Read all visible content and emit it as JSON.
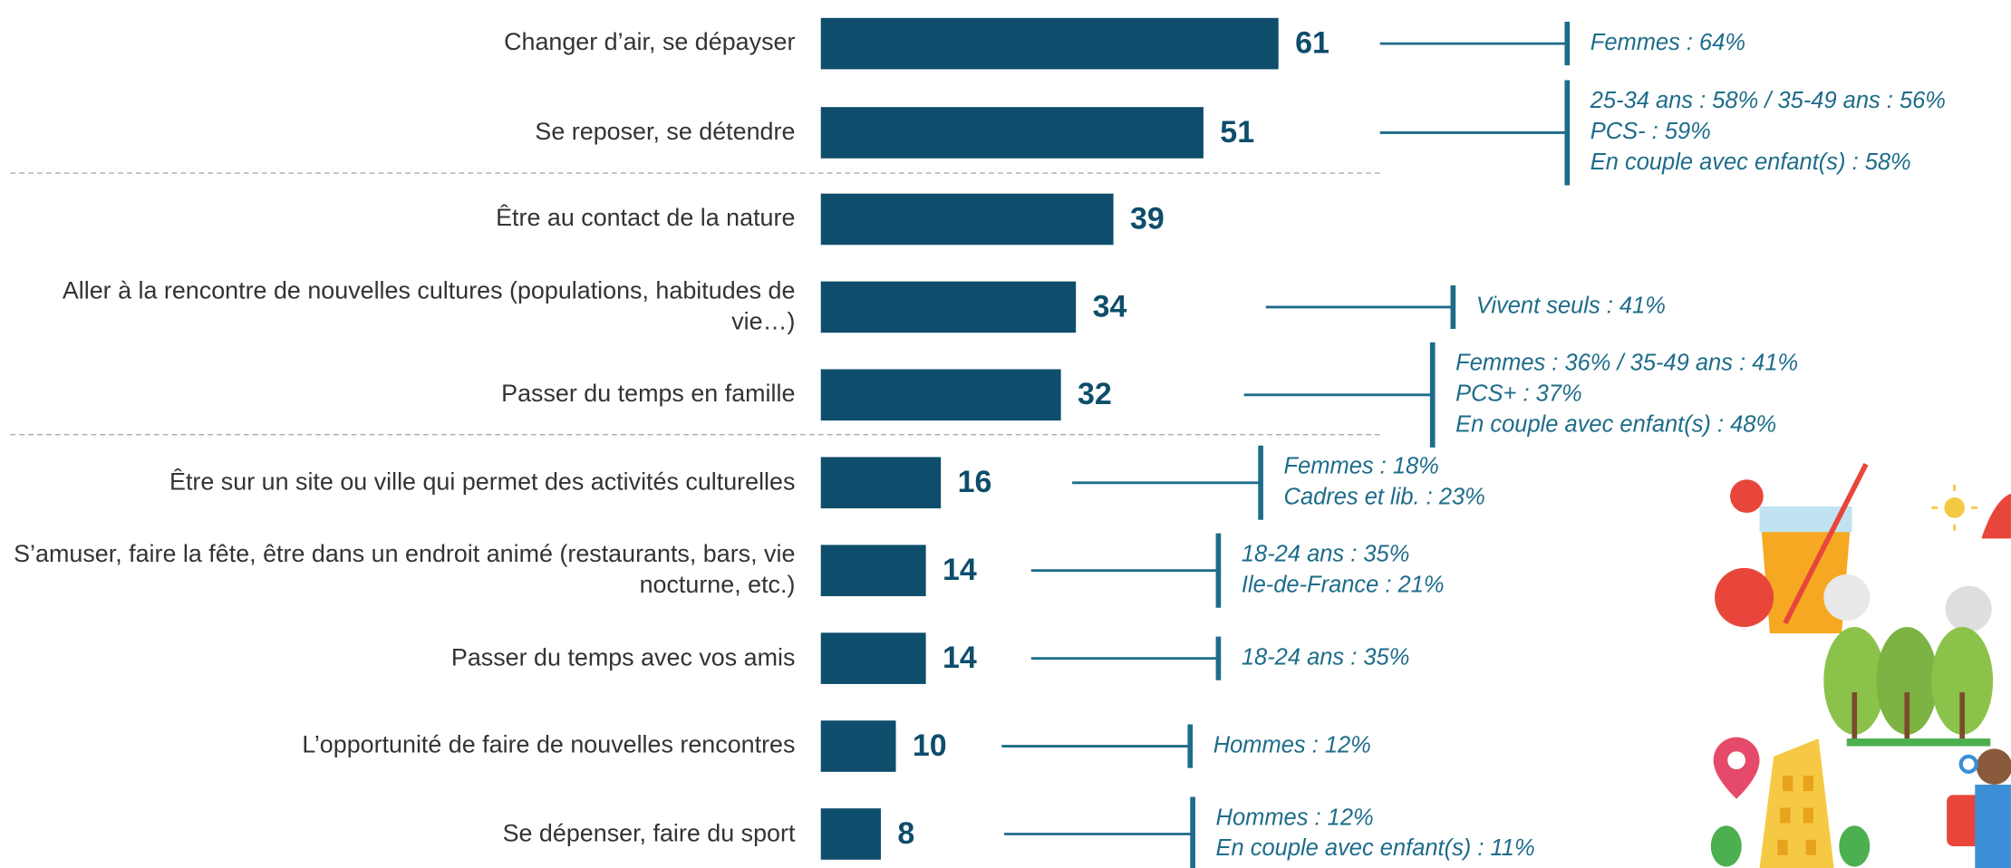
{
  "chart_data": {
    "type": "bar",
    "orientation": "horizontal",
    "categories": [
      "Changer d’air, se dépayser",
      "Se reposer, se détendre",
      "Être au contact de la nature",
      "Aller à la rencontre de nouvelles cultures (populations, habitudes de vie…)",
      "Passer du temps en famille",
      "Être sur un site ou ville qui permet des activités culturelles",
      "S’amuser, faire la fête, être dans un endroit animé (restaurants, bars, vie nocturne, etc.)",
      "Passer du temps avec vos amis",
      "L’opportunité de faire de nouvelles rencontres",
      "Se dépenser, faire du sport"
    ],
    "values": [
      61,
      51,
      39,
      34,
      32,
      16,
      14,
      14,
      10,
      8
    ],
    "color": "#0e4d6b",
    "xlim": [
      0,
      100
    ],
    "annotations": [
      [
        "Femmes : 64%"
      ],
      [
        "25-34 ans : 58% / 35-49 ans : 56%",
        "PCS- : 59%",
        "En couple avec enfant(s) : 58%"
      ],
      null,
      [
        "Vivent seuls : 41%"
      ],
      [
        "Femmes : 36% / 35-49 ans : 41%",
        "PCS+ : 37%",
        "En couple avec enfant(s) : 48%"
      ],
      [
        "Femmes : 18%",
        "Cadres et lib. : 23%"
      ],
      [
        "18-24 ans : 35%",
        "Ile-de-France : 21%"
      ],
      [
        "18-24 ans : 35%"
      ],
      [
        "Hommes : 12%"
      ],
      [
        "Hommes : 12%",
        "En couple avec enfant(s) : 11%"
      ]
    ]
  }
}
